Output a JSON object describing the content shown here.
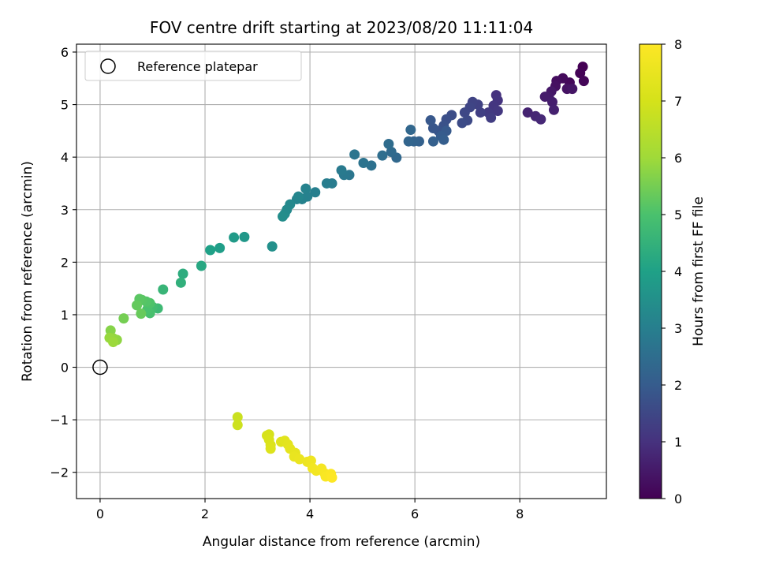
{
  "chart_data": {
    "type": "scatter",
    "title": "FOV centre drift starting at 2023/08/20 11:11:04",
    "xlabel": "Angular distance from reference (arcmin)",
    "ylabel": "Rotation from reference (arcmin)",
    "xlim": [
      -0.45,
      9.65
    ],
    "ylim": [
      -2.5,
      6.15
    ],
    "xticks": [
      0,
      2,
      4,
      6,
      8
    ],
    "yticks": [
      -2,
      -1,
      0,
      1,
      2,
      3,
      4,
      5,
      6
    ],
    "xtick_labels": [
      "0",
      "2",
      "4",
      "6",
      "8"
    ],
    "ytick_labels": [
      "−2",
      "−1",
      "0",
      "1",
      "2",
      "3",
      "4",
      "5",
      "6"
    ],
    "grid": true,
    "legend": {
      "position": "top-left",
      "entries": [
        {
          "label": "Reference platepar",
          "marker": "open-circle"
        }
      ]
    },
    "reference_point": {
      "x": 0,
      "y": 0
    },
    "colorbar": {
      "label": "Hours from first FF file",
      "colormap": "viridis",
      "range": [
        0,
        8
      ],
      "ticks": [
        0,
        1,
        2,
        3,
        4,
        5,
        6,
        7,
        8
      ],
      "tick_labels": [
        "0",
        "1",
        "2",
        "3",
        "4",
        "5",
        "6",
        "7",
        "8"
      ]
    },
    "points": [
      {
        "x": 9.2,
        "y": 5.72,
        "t": 0.0
      },
      {
        "x": 9.15,
        "y": 5.6,
        "t": 0.05
      },
      {
        "x": 9.22,
        "y": 5.45,
        "t": 0.1
      },
      {
        "x": 8.95,
        "y": 5.42,
        "t": 0.15
      },
      {
        "x": 8.82,
        "y": 5.5,
        "t": 0.2
      },
      {
        "x": 8.7,
        "y": 5.45,
        "t": 0.25
      },
      {
        "x": 8.68,
        "y": 5.35,
        "t": 0.3
      },
      {
        "x": 8.9,
        "y": 5.3,
        "t": 0.35
      },
      {
        "x": 9.0,
        "y": 5.3,
        "t": 0.4
      },
      {
        "x": 8.6,
        "y": 5.25,
        "t": 0.45
      },
      {
        "x": 8.55,
        "y": 5.15,
        "t": 0.5
      },
      {
        "x": 8.48,
        "y": 5.15,
        "t": 0.55
      },
      {
        "x": 8.62,
        "y": 5.05,
        "t": 0.6
      },
      {
        "x": 8.65,
        "y": 4.9,
        "t": 0.65
      },
      {
        "x": 8.15,
        "y": 4.85,
        "t": 0.7
      },
      {
        "x": 8.3,
        "y": 4.78,
        "t": 0.75
      },
      {
        "x": 8.4,
        "y": 4.72,
        "t": 0.8
      },
      {
        "x": 7.55,
        "y": 5.18,
        "t": 1.0
      },
      {
        "x": 7.58,
        "y": 5.08,
        "t": 1.05
      },
      {
        "x": 7.5,
        "y": 4.98,
        "t": 1.1
      },
      {
        "x": 7.58,
        "y": 4.88,
        "t": 1.15
      },
      {
        "x": 7.4,
        "y": 4.85,
        "t": 1.2
      },
      {
        "x": 7.45,
        "y": 4.75,
        "t": 1.25
      },
      {
        "x": 7.25,
        "y": 4.85,
        "t": 1.3
      },
      {
        "x": 7.2,
        "y": 5.0,
        "t": 1.35
      },
      {
        "x": 7.1,
        "y": 5.05,
        "t": 1.4
      },
      {
        "x": 7.05,
        "y": 4.95,
        "t": 1.45
      },
      {
        "x": 6.95,
        "y": 4.85,
        "t": 1.5
      },
      {
        "x": 7.0,
        "y": 4.7,
        "t": 1.55
      },
      {
        "x": 6.9,
        "y": 4.65,
        "t": 1.6
      },
      {
        "x": 6.7,
        "y": 4.8,
        "t": 1.65
      },
      {
        "x": 6.6,
        "y": 4.72,
        "t": 1.7
      },
      {
        "x": 6.55,
        "y": 4.6,
        "t": 1.75
      },
      {
        "x": 6.45,
        "y": 4.5,
        "t": 1.8
      },
      {
        "x": 6.35,
        "y": 4.55,
        "t": 1.85
      },
      {
        "x": 6.3,
        "y": 4.7,
        "t": 1.9
      },
      {
        "x": 6.6,
        "y": 4.5,
        "t": 1.95
      },
      {
        "x": 6.5,
        "y": 4.4,
        "t": 2.0
      },
      {
        "x": 6.55,
        "y": 4.33,
        "t": 2.05
      },
      {
        "x": 6.35,
        "y": 4.3,
        "t": 2.1
      },
      {
        "x": 6.08,
        "y": 4.3,
        "t": 2.15
      },
      {
        "x": 5.98,
        "y": 4.3,
        "t": 2.2
      },
      {
        "x": 5.88,
        "y": 4.3,
        "t": 2.25
      },
      {
        "x": 5.92,
        "y": 4.52,
        "t": 2.3
      },
      {
        "x": 5.65,
        "y": 3.99,
        "t": 2.35
      },
      {
        "x": 5.55,
        "y": 4.1,
        "t": 2.4
      },
      {
        "x": 5.5,
        "y": 4.25,
        "t": 2.45
      },
      {
        "x": 5.38,
        "y": 4.03,
        "t": 2.5
      },
      {
        "x": 5.17,
        "y": 3.84,
        "t": 2.6
      },
      {
        "x": 5.02,
        "y": 3.89,
        "t": 2.65
      },
      {
        "x": 4.85,
        "y": 4.05,
        "t": 2.7
      },
      {
        "x": 4.75,
        "y": 3.66,
        "t": 2.75
      },
      {
        "x": 4.65,
        "y": 3.66,
        "t": 2.8
      },
      {
        "x": 4.6,
        "y": 3.75,
        "t": 2.85
      },
      {
        "x": 4.42,
        "y": 3.5,
        "t": 2.9
      },
      {
        "x": 4.32,
        "y": 3.5,
        "t": 2.95
      },
      {
        "x": 4.1,
        "y": 3.33,
        "t": 3.0
      },
      {
        "x": 3.95,
        "y": 3.25,
        "t": 3.05
      },
      {
        "x": 3.92,
        "y": 3.4,
        "t": 3.08
      },
      {
        "x": 3.85,
        "y": 3.2,
        "t": 3.1
      },
      {
        "x": 3.75,
        "y": 3.2,
        "t": 3.15
      },
      {
        "x": 3.78,
        "y": 3.25,
        "t": 3.2
      },
      {
        "x": 3.62,
        "y": 3.1,
        "t": 3.25
      },
      {
        "x": 3.56,
        "y": 3.0,
        "t": 3.3
      },
      {
        "x": 3.52,
        "y": 2.92,
        "t": 3.35
      },
      {
        "x": 3.48,
        "y": 2.87,
        "t": 3.4
      },
      {
        "x": 3.28,
        "y": 2.3,
        "t": 3.5
      },
      {
        "x": 2.75,
        "y": 2.48,
        "t": 3.7
      },
      {
        "x": 2.55,
        "y": 2.47,
        "t": 3.8
      },
      {
        "x": 2.28,
        "y": 2.27,
        "t": 3.9
      },
      {
        "x": 2.1,
        "y": 2.23,
        "t": 4.0
      },
      {
        "x": 1.93,
        "y": 1.93,
        "t": 4.2
      },
      {
        "x": 1.58,
        "y": 1.78,
        "t": 4.35
      },
      {
        "x": 1.54,
        "y": 1.61,
        "t": 4.45
      },
      {
        "x": 1.2,
        "y": 1.48,
        "t": 4.6
      },
      {
        "x": 1.1,
        "y": 1.12,
        "t": 4.75
      },
      {
        "x": 1.0,
        "y": 1.15,
        "t": 4.85
      },
      {
        "x": 0.95,
        "y": 1.03,
        "t": 4.95
      },
      {
        "x": 0.9,
        "y": 1.1,
        "t": 5.0
      },
      {
        "x": 0.95,
        "y": 1.22,
        "t": 5.05
      },
      {
        "x": 0.88,
        "y": 1.25,
        "t": 5.1
      },
      {
        "x": 0.8,
        "y": 1.28,
        "t": 5.15
      },
      {
        "x": 0.75,
        "y": 1.3,
        "t": 5.2
      },
      {
        "x": 0.7,
        "y": 1.18,
        "t": 5.3
      },
      {
        "x": 0.78,
        "y": 1.02,
        "t": 5.35
      },
      {
        "x": 0.45,
        "y": 0.93,
        "t": 5.5
      },
      {
        "x": 0.2,
        "y": 0.7,
        "t": 5.7
      },
      {
        "x": 0.32,
        "y": 0.52,
        "t": 5.8
      },
      {
        "x": 0.25,
        "y": 0.55,
        "t": 5.85
      },
      {
        "x": 0.18,
        "y": 0.56,
        "t": 5.9
      },
      {
        "x": 0.25,
        "y": 0.48,
        "t": 5.95
      },
      {
        "x": 2.62,
        "y": -0.95,
        "t": 6.8
      },
      {
        "x": 2.62,
        "y": -1.1,
        "t": 6.85
      },
      {
        "x": 3.22,
        "y": -1.28,
        "t": 7.0
      },
      {
        "x": 3.18,
        "y": -1.3,
        "t": 7.05
      },
      {
        "x": 3.22,
        "y": -1.38,
        "t": 7.1
      },
      {
        "x": 3.25,
        "y": -1.48,
        "t": 7.15
      },
      {
        "x": 3.25,
        "y": -1.55,
        "t": 7.2
      },
      {
        "x": 3.45,
        "y": -1.42,
        "t": 7.25
      },
      {
        "x": 3.52,
        "y": -1.4,
        "t": 7.3
      },
      {
        "x": 3.58,
        "y": -1.47,
        "t": 7.35
      },
      {
        "x": 3.62,
        "y": -1.55,
        "t": 7.4
      },
      {
        "x": 3.72,
        "y": -1.63,
        "t": 7.45
      },
      {
        "x": 3.7,
        "y": -1.7,
        "t": 7.5
      },
      {
        "x": 3.8,
        "y": -1.75,
        "t": 7.55
      },
      {
        "x": 3.95,
        "y": -1.8,
        "t": 7.6
      },
      {
        "x": 4.02,
        "y": -1.78,
        "t": 7.65
      },
      {
        "x": 4.05,
        "y": -1.92,
        "t": 7.7
      },
      {
        "x": 4.12,
        "y": -1.97,
        "t": 7.75
      },
      {
        "x": 4.22,
        "y": -1.93,
        "t": 7.8
      },
      {
        "x": 4.28,
        "y": -2.02,
        "t": 7.85
      },
      {
        "x": 4.3,
        "y": -2.08,
        "t": 7.9
      },
      {
        "x": 4.4,
        "y": -2.03,
        "t": 7.95
      },
      {
        "x": 4.42,
        "y": -2.1,
        "t": 8.0
      }
    ]
  }
}
